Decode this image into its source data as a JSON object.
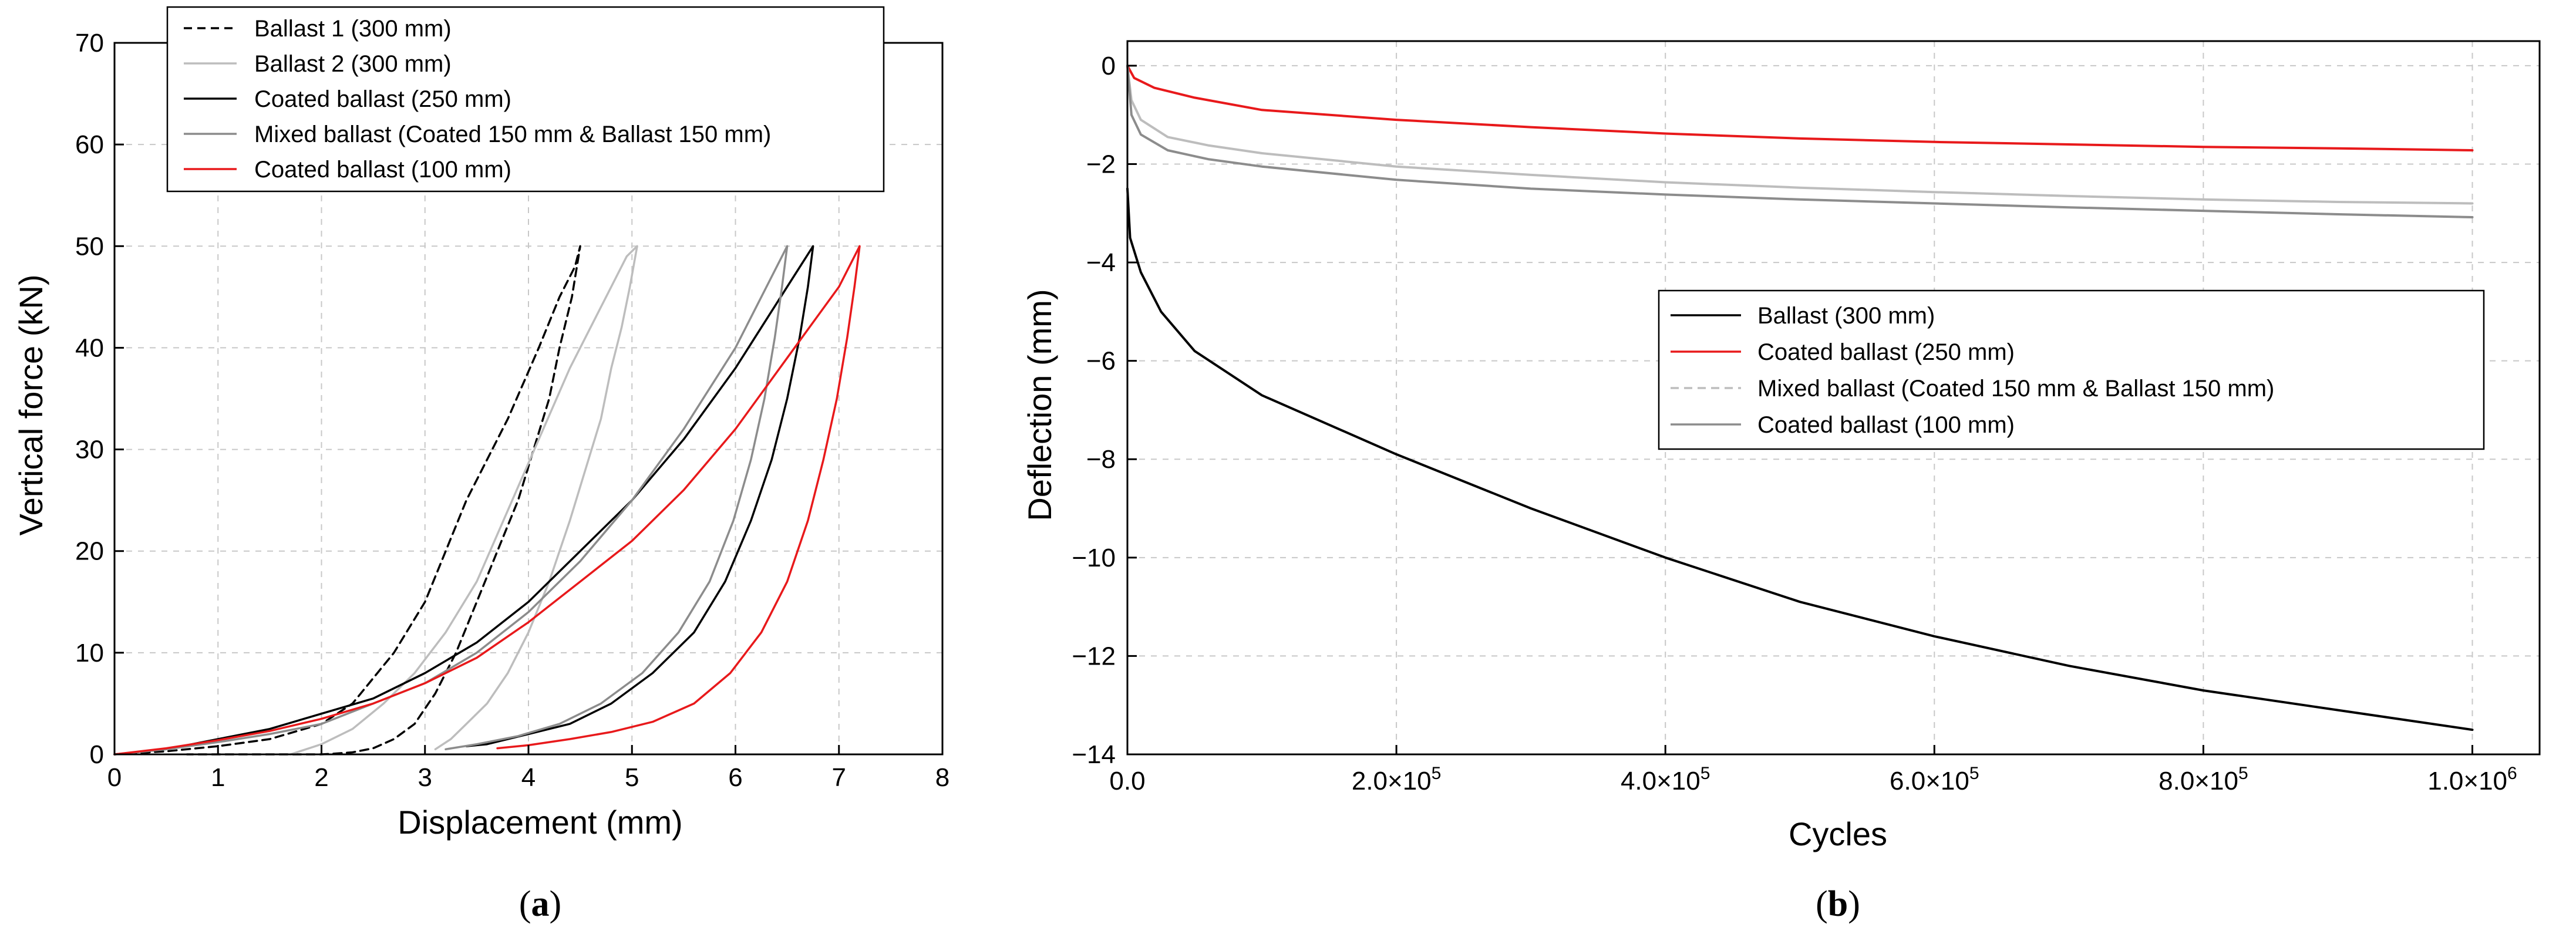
{
  "chart_data": [
    {
      "id": "a",
      "panel_label": "a",
      "type": "line",
      "title": "",
      "xlabel": "Displacement (mm)",
      "ylabel": "Vertical force (kN)",
      "xlim": [
        0,
        8
      ],
      "ylim": [
        0,
        70
      ],
      "x_ticks": [
        "0",
        "1",
        "2",
        "3",
        "4",
        "5",
        "6",
        "7",
        "8"
      ],
      "y_ticks": [
        "0",
        "10",
        "20",
        "30",
        "40",
        "50",
        "60",
        "70"
      ],
      "grid": true,
      "legend_position": "top",
      "series": [
        {
          "name": "Ballast 1 (300 mm)",
          "color": "#000000",
          "style": "dashed",
          "x": [
            0,
            0.5,
            1.0,
            1.5,
            2.0,
            2.3,
            2.7,
            3.0,
            3.4,
            3.8,
            4.1,
            4.3,
            4.45,
            4.5,
            4.5,
            4.42,
            4.3,
            4.2,
            4.05,
            3.9,
            3.7,
            3.5,
            3.3,
            3.1,
            2.9,
            2.7,
            2.5,
            2.3,
            2.1,
            2.0,
            1.5,
            0.7
          ],
          "y": [
            0,
            0.3,
            0.8,
            1.5,
            3,
            5,
            10,
            15,
            25,
            33,
            40,
            45,
            48,
            50,
            50,
            45,
            40,
            35,
            30,
            25,
            20,
            15,
            10,
            6,
            3,
            1.5,
            0.6,
            0.2,
            0.05,
            0,
            0,
            0
          ]
        },
        {
          "name": "Ballast 2 (300 mm)",
          "color": "#bdbdbd",
          "style": "solid",
          "x": [
            1.7,
            2.0,
            2.3,
            2.6,
            2.9,
            3.2,
            3.5,
            3.8,
            4.1,
            4.4,
            4.6,
            4.8,
            4.95,
            5.05,
            5.05,
            4.98,
            4.9,
            4.8,
            4.7,
            4.55,
            4.4,
            4.2,
            4.0,
            3.8,
            3.6,
            3.4,
            3.25,
            3.1
          ],
          "y": [
            0,
            1,
            2.5,
            5,
            8,
            12,
            17,
            24,
            31,
            38,
            42,
            46,
            49,
            50,
            50,
            46,
            42,
            38,
            33,
            28,
            23,
            17,
            12,
            8,
            5,
            3,
            1.5,
            0.5
          ]
        },
        {
          "name": "Coated ballast (250 mm)",
          "color": "#000000",
          "style": "solid",
          "x": [
            0,
            0.5,
            1.0,
            1.5,
            2.0,
            2.5,
            3.0,
            3.5,
            4.0,
            4.5,
            5.0,
            5.5,
            6.0,
            6.5,
            6.75,
            6.75,
            6.7,
            6.62,
            6.5,
            6.35,
            6.15,
            5.9,
            5.6,
            5.2,
            4.8,
            4.4,
            4.0,
            3.6,
            3.4
          ],
          "y": [
            0,
            0.5,
            1.5,
            2.5,
            4,
            5.5,
            8,
            11,
            15,
            20,
            25,
            31,
            38,
            46,
            50,
            50,
            46,
            41,
            35,
            29,
            23,
            17,
            12,
            8,
            5,
            3,
            2,
            1,
            0.8
          ]
        },
        {
          "name": "Mixed ballast (Coated 150 mm & Ballast 150 mm)",
          "color": "#8c8c8c",
          "style": "solid",
          "x": [
            0,
            0.5,
            1.0,
            1.5,
            2.0,
            2.5,
            3.0,
            3.5,
            4.0,
            4.5,
            5.0,
            5.5,
            6.0,
            6.3,
            6.5,
            6.5,
            6.45,
            6.38,
            6.28,
            6.15,
            5.98,
            5.75,
            5.45,
            5.1,
            4.7,
            4.3,
            3.9,
            3.5,
            3.2
          ],
          "y": [
            0,
            0.5,
            1.2,
            2,
            3,
            5,
            7,
            10,
            14,
            19,
            25,
            32,
            40,
            46,
            50,
            50,
            46,
            41,
            35,
            29,
            23,
            17,
            12,
            8,
            5,
            3,
            1.8,
            1,
            0.5
          ]
        },
        {
          "name": "Coated ballast (100 mm)",
          "color": "#e8191b",
          "style": "solid",
          "x": [
            0,
            0.5,
            1.0,
            1.5,
            2.0,
            2.5,
            3.0,
            3.5,
            4.0,
            4.5,
            5.0,
            5.5,
            6.0,
            6.5,
            7.0,
            7.2,
            7.2,
            7.15,
            7.08,
            6.98,
            6.85,
            6.7,
            6.5,
            6.25,
            5.95,
            5.6,
            5.2,
            4.8,
            4.4,
            4.0,
            3.7
          ],
          "y": [
            0,
            0.6,
            1.4,
            2.3,
            3.5,
            5,
            7,
            9.5,
            13,
            17,
            21,
            26,
            32,
            39,
            46,
            50,
            50,
            46,
            41,
            35,
            29,
            23,
            17,
            12,
            8,
            5,
            3.2,
            2.2,
            1.5,
            0.9,
            0.6
          ]
        }
      ]
    },
    {
      "id": "b",
      "panel_label": "b",
      "type": "line",
      "title": "",
      "xlabel": "Cycles",
      "ylabel": "Deflection (mm)",
      "xlim": [
        0,
        1050000
      ],
      "ylim": [
        -14,
        0.5
      ],
      "x_ticks": [
        {
          "value": 0,
          "mantissa": "0.0",
          "exp": ""
        },
        {
          "value": 200000,
          "mantissa": "2.0×10",
          "exp": "5"
        },
        {
          "value": 400000,
          "mantissa": "4.0×10",
          "exp": "5"
        },
        {
          "value": 600000,
          "mantissa": "6.0×10",
          "exp": "5"
        },
        {
          "value": 800000,
          "mantissa": "8.0×10",
          "exp": "5"
        },
        {
          "value": 1000000,
          "mantissa": "1.0×10",
          "exp": "6"
        }
      ],
      "y_ticks": [
        {
          "value": 0,
          "label": "0"
        },
        {
          "value": -2,
          "label": "−2"
        },
        {
          "value": -4,
          "label": "−4"
        },
        {
          "value": -6,
          "label": "−6"
        },
        {
          "value": -8,
          "label": "−8"
        },
        {
          "value": -10,
          "label": "−10"
        },
        {
          "value": -12,
          "label": "−12"
        },
        {
          "value": -14,
          "label": "−14"
        }
      ],
      "grid": true,
      "legend_position": "center-right",
      "series": [
        {
          "name": "Ballast (300 mm)",
          "color": "#000000",
          "style": "solid",
          "x": [
            0,
            2000,
            10000,
            25000,
            50000,
            100000,
            200000,
            300000,
            400000,
            500000,
            600000,
            700000,
            800000,
            900000,
            1000000
          ],
          "y": [
            -2.5,
            -3.5,
            -4.2,
            -5.0,
            -5.8,
            -6.7,
            -7.9,
            -9.0,
            -10.0,
            -10.9,
            -11.6,
            -12.2,
            -12.7,
            -13.1,
            -13.5
          ]
        },
        {
          "name": "Coated ballast (250 mm)",
          "color": "#e8191b",
          "style": "solid",
          "x": [
            0,
            5000,
            20000,
            50000,
            100000,
            200000,
            300000,
            400000,
            500000,
            600000,
            700000,
            800000,
            900000,
            1000000
          ],
          "y": [
            0,
            -0.25,
            -0.45,
            -0.65,
            -0.9,
            -1.1,
            -1.25,
            -1.38,
            -1.48,
            -1.55,
            -1.6,
            -1.65,
            -1.68,
            -1.72
          ]
        },
        {
          "name": "Mixed ballast (Coated 150 mm & Ballast 150 mm)",
          "color": "#bdbdbd",
          "style": "solid",
          "x": [
            0,
            3000,
            10000,
            30000,
            60000,
            100000,
            200000,
            300000,
            400000,
            500000,
            600000,
            700000,
            800000,
            900000,
            1000000
          ],
          "y": [
            0,
            -0.7,
            -1.1,
            -1.45,
            -1.62,
            -1.78,
            -2.05,
            -2.22,
            -2.37,
            -2.48,
            -2.57,
            -2.65,
            -2.72,
            -2.77,
            -2.8
          ]
        },
        {
          "name": "Coated ballast (100 mm)",
          "color": "#8c8c8c",
          "style": "solid",
          "x": [
            0,
            3000,
            10000,
            30000,
            60000,
            100000,
            200000,
            300000,
            400000,
            500000,
            600000,
            700000,
            800000,
            900000,
            1000000
          ],
          "y": [
            0,
            -1.0,
            -1.4,
            -1.72,
            -1.9,
            -2.05,
            -2.32,
            -2.5,
            -2.62,
            -2.72,
            -2.8,
            -2.88,
            -2.95,
            -3.02,
            -3.08
          ]
        }
      ],
      "legend_entries": [
        {
          "name": "Ballast (300 mm)",
          "color": "#000000",
          "style": "solid"
        },
        {
          "name": "Coated ballast (250 mm)",
          "color": "#e8191b",
          "style": "solid"
        },
        {
          "name": "Mixed ballast (Coated 150 mm & Ballast 150 mm)",
          "color": "#bdbdbd",
          "style": "dashed"
        },
        {
          "name": "Coated ballast (100 mm)",
          "color": "#8c8c8c",
          "style": "solid"
        }
      ]
    }
  ]
}
